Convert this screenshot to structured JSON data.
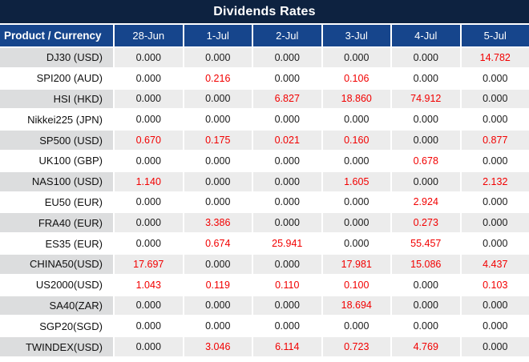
{
  "title_bar": {
    "title": "Dividends Rates"
  },
  "colors": {
    "title_bg": "#0d2240",
    "header_bg": "#16458c",
    "striped_product_bg": "#dcddde",
    "striped_value_bg": "#ececec",
    "highlight_red": "#f20000",
    "text_black": "#1a1a1a",
    "separator_white": "#ffffff"
  },
  "chart_data": {
    "type": "table",
    "title": "Dividends Rates",
    "columns": [
      "Product / Currency",
      "28-Jun",
      "1-Jul",
      "2-Jul",
      "3-Jul",
      "4-Jul",
      "5-Jul"
    ],
    "rows": [
      {
        "product": "DJ30 (USD)",
        "values": [
          "0.000",
          "0.000",
          "0.000",
          "0.000",
          "0.000",
          "14.782"
        ],
        "red_flags": [
          false,
          false,
          false,
          false,
          false,
          true
        ]
      },
      {
        "product": "SPI200 (AUD)",
        "values": [
          "0.000",
          "0.216",
          "0.000",
          "0.106",
          "0.000",
          "0.000"
        ],
        "red_flags": [
          false,
          true,
          false,
          true,
          false,
          false
        ]
      },
      {
        "product": "HSI (HKD)",
        "values": [
          "0.000",
          "0.000",
          "6.827",
          "18.860",
          "74.912",
          "0.000"
        ],
        "red_flags": [
          false,
          false,
          true,
          true,
          true,
          false
        ]
      },
      {
        "product": "Nikkei225 (JPN)",
        "values": [
          "0.000",
          "0.000",
          "0.000",
          "0.000",
          "0.000",
          "0.000"
        ],
        "red_flags": [
          false,
          false,
          false,
          false,
          false,
          false
        ]
      },
      {
        "product": "SP500 (USD)",
        "values": [
          "0.670",
          "0.175",
          "0.021",
          "0.160",
          "0.000",
          "0.877"
        ],
        "red_flags": [
          true,
          true,
          true,
          true,
          false,
          true
        ]
      },
      {
        "product": "UK100 (GBP)",
        "values": [
          "0.000",
          "0.000",
          "0.000",
          "0.000",
          "0.678",
          "0.000"
        ],
        "red_flags": [
          false,
          false,
          false,
          false,
          true,
          false
        ]
      },
      {
        "product": "NAS100 (USD)",
        "values": [
          "1.140",
          "0.000",
          "0.000",
          "1.605",
          "0.000",
          "2.132"
        ],
        "red_flags": [
          true,
          false,
          false,
          true,
          false,
          true
        ]
      },
      {
        "product": "EU50 (EUR)",
        "values": [
          "0.000",
          "0.000",
          "0.000",
          "0.000",
          "2.924",
          "0.000"
        ],
        "red_flags": [
          false,
          false,
          false,
          false,
          true,
          false
        ]
      },
      {
        "product": "FRA40 (EUR)",
        "values": [
          "0.000",
          "3.386",
          "0.000",
          "0.000",
          "0.273",
          "0.000"
        ],
        "red_flags": [
          false,
          true,
          false,
          false,
          true,
          false
        ]
      },
      {
        "product": "ES35 (EUR)",
        "values": [
          "0.000",
          "0.674",
          "25.941",
          "0.000",
          "55.457",
          "0.000"
        ],
        "red_flags": [
          false,
          true,
          true,
          false,
          true,
          false
        ]
      },
      {
        "product": "CHINA50(USD)",
        "values": [
          "17.697",
          "0.000",
          "0.000",
          "17.981",
          "15.086",
          "4.437"
        ],
        "red_flags": [
          true,
          false,
          false,
          true,
          true,
          true
        ]
      },
      {
        "product": "US2000(USD)",
        "values": [
          "1.043",
          "0.119",
          "0.110",
          "0.100",
          "0.000",
          "0.103"
        ],
        "red_flags": [
          true,
          true,
          true,
          true,
          false,
          true
        ]
      },
      {
        "product": "SA40(ZAR)",
        "values": [
          "0.000",
          "0.000",
          "0.000",
          "18.694",
          "0.000",
          "0.000"
        ],
        "red_flags": [
          false,
          false,
          false,
          true,
          false,
          false
        ]
      },
      {
        "product": "SGP20(SGD)",
        "values": [
          "0.000",
          "0.000",
          "0.000",
          "0.000",
          "0.000",
          "0.000"
        ],
        "red_flags": [
          false,
          false,
          false,
          false,
          false,
          false
        ]
      },
      {
        "product": "TWINDEX(USD)",
        "values": [
          "0.000",
          "3.046",
          "6.114",
          "0.723",
          "4.769",
          "0.000"
        ],
        "red_flags": [
          false,
          true,
          true,
          true,
          true,
          false
        ]
      }
    ],
    "layout": {
      "striping": "odd rows (1st, 3rd, ...) have gray background",
      "highlight": "non-zero dividend values rendered in red",
      "first_column_align": "right",
      "value_align": "center"
    }
  }
}
